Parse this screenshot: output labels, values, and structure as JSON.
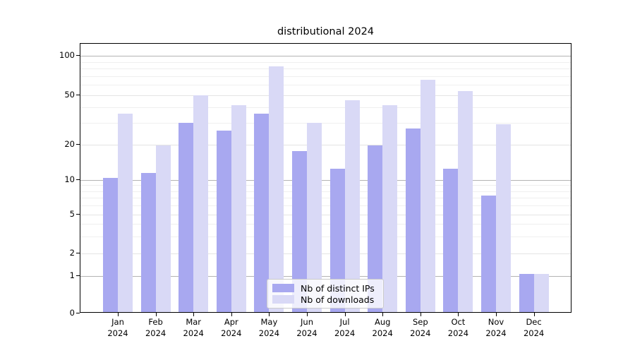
{
  "title": "distributional 2024",
  "chart_data": {
    "type": "bar",
    "title": "distributional 2024",
    "categories": [
      "Jan 2024",
      "Feb 2024",
      "Mar 2024",
      "Apr 2024",
      "May 2024",
      "Jun 2024",
      "Jul 2024",
      "Aug 2024",
      "Sep 2024",
      "Oct 2024",
      "Nov 2024",
      "Dec 2024"
    ],
    "x_months": [
      "Jan",
      "Feb",
      "Mar",
      "Apr",
      "May",
      "Jun",
      "Jul",
      "Aug",
      "Sep",
      "Oct",
      "Nov",
      "Dec"
    ],
    "x_year": "2024",
    "series": [
      {
        "name": "Nb of distinct IPs",
        "color": "#a8a8f0",
        "values": [
          10,
          11,
          29,
          25,
          34,
          17,
          12,
          19,
          26,
          12,
          7,
          1
        ]
      },
      {
        "name": "Nb of downloads",
        "color": "#d9d9f6",
        "values": [
          34,
          19,
          48,
          40,
          80,
          29,
          44,
          40,
          63,
          52,
          28,
          1
        ]
      }
    ],
    "y_axis": {
      "scale": "symlog",
      "ticks": [
        0,
        1,
        2,
        5,
        10,
        20,
        50,
        100
      ],
      "minor_gridlines": [
        3,
        4,
        6,
        7,
        8,
        9,
        30,
        40,
        60,
        70,
        80,
        90
      ],
      "ylim": [
        0,
        120
      ]
    },
    "grid": true,
    "legend": {
      "position": "lower center",
      "entries": [
        "Nb of distinct IPs",
        "Nb of downloads"
      ]
    }
  }
}
